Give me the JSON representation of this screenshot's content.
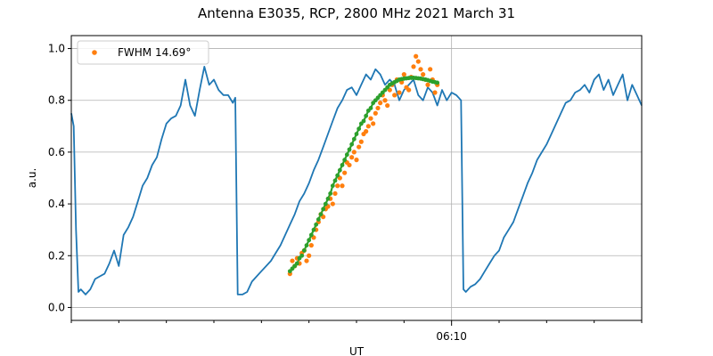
{
  "chart_data": {
    "type": "line",
    "title": "Antenna E3035, RCP, 2800 MHz 2021 March 31",
    "xlabel": "UT",
    "ylabel": "a.u.",
    "x_unit": "minutes",
    "xlim": [
      -8,
      4
    ],
    "ylim": [
      -0.05,
      1.05
    ],
    "yticks": [
      0.0,
      0.2,
      0.4,
      0.6,
      0.8,
      1.0
    ],
    "ytick_labels": [
      "0.0",
      "0.2",
      "0.4",
      "0.6",
      "0.8",
      "1.0"
    ],
    "xticks_major": [
      {
        "x": 0,
        "label": "06:10"
      }
    ],
    "xticks_minor": [
      -8,
      -7,
      -6,
      -5,
      -4,
      -3,
      -2,
      -1,
      1,
      2,
      3,
      4
    ],
    "grid": true,
    "legend_position": "top-left",
    "colors": {
      "line": "#1f77b4",
      "points": "#ff7f0e",
      "fit": "#2ca02c"
    },
    "series": [
      {
        "style": "line",
        "x": [
          -8.0,
          -7.95,
          -7.9,
          -7.85,
          -7.8,
          -7.7,
          -7.6,
          -7.5,
          -7.4,
          -7.3,
          -7.2,
          -7.1,
          -7.0,
          -6.9,
          -6.8,
          -6.7,
          -6.6,
          -6.5,
          -6.4,
          -6.3,
          -6.2,
          -6.1,
          -6.0,
          -5.9,
          -5.8,
          -5.7,
          -5.6,
          -5.5,
          -5.4,
          -5.3,
          -5.2,
          -5.1,
          -5.0,
          -4.9,
          -4.8,
          -4.7,
          -4.6,
          -4.55,
          -4.5,
          -4.4,
          -4.3,
          -4.2,
          -4.1,
          -4.0,
          -3.9,
          -3.8,
          -3.7,
          -3.6,
          -3.5,
          -3.4,
          -3.3,
          -3.2,
          -3.1,
          -3.0,
          -2.9,
          -2.8,
          -2.7,
          -2.6,
          -2.5,
          -2.4,
          -2.3,
          -2.2,
          -2.1,
          -2.0,
          -1.9,
          -1.8,
          -1.7,
          -1.6,
          -1.5,
          -1.4,
          -1.3,
          -1.2,
          -1.1,
          -1.0,
          -0.9,
          -0.8,
          -0.7,
          -0.6,
          -0.5,
          -0.4,
          -0.3,
          -0.2,
          -0.1,
          0.0,
          0.1,
          0.2,
          0.25,
          0.3,
          0.4,
          0.5,
          0.6,
          0.7,
          0.8,
          0.9,
          1.0,
          1.1,
          1.2,
          1.3,
          1.4,
          1.5,
          1.6,
          1.7,
          1.8,
          1.9,
          2.0,
          2.1,
          2.2,
          2.3,
          2.4,
          2.5,
          2.6,
          2.7,
          2.8,
          2.9,
          3.0,
          3.1,
          3.2,
          3.3,
          3.4,
          3.5,
          3.6,
          3.7,
          3.8,
          3.9,
          4.0
        ],
        "y": [
          0.75,
          0.7,
          0.3,
          0.06,
          0.07,
          0.05,
          0.07,
          0.11,
          0.12,
          0.13,
          0.17,
          0.22,
          0.16,
          0.28,
          0.31,
          0.35,
          0.41,
          0.47,
          0.5,
          0.55,
          0.58,
          0.65,
          0.71,
          0.73,
          0.74,
          0.78,
          0.88,
          0.78,
          0.74,
          0.84,
          0.93,
          0.86,
          0.88,
          0.84,
          0.82,
          0.82,
          0.79,
          0.81,
          0.05,
          0.05,
          0.06,
          0.1,
          0.12,
          0.14,
          0.16,
          0.18,
          0.21,
          0.24,
          0.28,
          0.32,
          0.36,
          0.41,
          0.44,
          0.48,
          0.53,
          0.57,
          0.62,
          0.67,
          0.72,
          0.77,
          0.8,
          0.84,
          0.85,
          0.82,
          0.86,
          0.9,
          0.88,
          0.92,
          0.9,
          0.86,
          0.88,
          0.86,
          0.8,
          0.84,
          0.86,
          0.88,
          0.82,
          0.8,
          0.85,
          0.83,
          0.78,
          0.84,
          0.8,
          0.83,
          0.82,
          0.8,
          0.07,
          0.06,
          0.08,
          0.09,
          0.11,
          0.14,
          0.17,
          0.2,
          0.22,
          0.27,
          0.3,
          0.33,
          0.38,
          0.43,
          0.48,
          0.52,
          0.57,
          0.6,
          0.63,
          0.67,
          0.71,
          0.75,
          0.79,
          0.8,
          0.83,
          0.84,
          0.86,
          0.83,
          0.88,
          0.9,
          0.84,
          0.88,
          0.82,
          0.86,
          0.9,
          0.8,
          0.86,
          0.82,
          0.78
        ]
      },
      {
        "name": "FWHM 14.69$^\\circ$",
        "style": "points",
        "x": [
          -3.4,
          -3.35,
          -3.3,
          -3.25,
          -3.2,
          -3.15,
          -3.1,
          -3.05,
          -3.0,
          -2.95,
          -2.9,
          -2.85,
          -2.8,
          -2.75,
          -2.7,
          -2.65,
          -2.6,
          -2.55,
          -2.5,
          -2.45,
          -2.4,
          -2.35,
          -2.3,
          -2.25,
          -2.2,
          -2.15,
          -2.1,
          -2.05,
          -2.0,
          -1.95,
          -1.9,
          -1.85,
          -1.8,
          -1.75,
          -1.7,
          -1.65,
          -1.6,
          -1.55,
          -1.5,
          -1.45,
          -1.4,
          -1.35,
          -1.3,
          -1.25,
          -1.2,
          -1.15,
          -1.1,
          -1.05,
          -1.0,
          -0.95,
          -0.9,
          -0.85,
          -0.8,
          -0.75,
          -0.7,
          -0.65,
          -0.6,
          -0.55,
          -0.5,
          -0.45,
          -0.4,
          -0.35,
          -0.3
        ],
        "y": [
          0.13,
          0.18,
          0.16,
          0.19,
          0.17,
          0.21,
          0.22,
          0.18,
          0.2,
          0.24,
          0.27,
          0.3,
          0.33,
          0.36,
          0.35,
          0.38,
          0.39,
          0.42,
          0.4,
          0.44,
          0.47,
          0.5,
          0.47,
          0.52,
          0.56,
          0.55,
          0.58,
          0.6,
          0.57,
          0.62,
          0.64,
          0.67,
          0.68,
          0.7,
          0.73,
          0.71,
          0.75,
          0.77,
          0.79,
          0.82,
          0.8,
          0.78,
          0.84,
          0.86,
          0.82,
          0.88,
          0.83,
          0.87,
          0.9,
          0.85,
          0.84,
          0.89,
          0.93,
          0.97,
          0.95,
          0.92,
          0.9,
          0.88,
          0.86,
          0.92,
          0.88,
          0.83,
          0.86
        ]
      },
      {
        "style": "fit-points",
        "x": [
          -3.4,
          -3.35,
          -3.3,
          -3.25,
          -3.2,
          -3.15,
          -3.1,
          -3.05,
          -3.0,
          -2.95,
          -2.9,
          -2.85,
          -2.8,
          -2.75,
          -2.7,
          -2.65,
          -2.6,
          -2.55,
          -2.5,
          -2.45,
          -2.4,
          -2.35,
          -2.3,
          -2.25,
          -2.2,
          -2.15,
          -2.1,
          -2.05,
          -2.0,
          -1.95,
          -1.9,
          -1.85,
          -1.8,
          -1.75,
          -1.7,
          -1.65,
          -1.6,
          -1.55,
          -1.5,
          -1.45,
          -1.4,
          -1.35,
          -1.3,
          -1.25,
          -1.2,
          -1.15,
          -1.1,
          -1.05,
          -1.0,
          -0.95,
          -0.9,
          -0.85,
          -0.8,
          -0.75,
          -0.7,
          -0.65,
          -0.6,
          -0.55,
          -0.5,
          -0.45,
          -0.4,
          -0.35,
          -0.3
        ],
        "y": [
          0.14,
          0.15,
          0.16,
          0.17,
          0.19,
          0.2,
          0.22,
          0.24,
          0.26,
          0.28,
          0.3,
          0.32,
          0.34,
          0.36,
          0.38,
          0.4,
          0.42,
          0.44,
          0.47,
          0.49,
          0.51,
          0.53,
          0.55,
          0.57,
          0.59,
          0.61,
          0.63,
          0.65,
          0.67,
          0.69,
          0.71,
          0.72,
          0.74,
          0.76,
          0.77,
          0.79,
          0.8,
          0.81,
          0.82,
          0.83,
          0.84,
          0.85,
          0.86,
          0.865,
          0.87,
          0.875,
          0.88,
          0.882,
          0.884,
          0.885,
          0.886,
          0.887,
          0.887,
          0.886,
          0.885,
          0.884,
          0.882,
          0.88,
          0.878,
          0.875,
          0.872,
          0.87,
          0.868
        ]
      }
    ]
  }
}
